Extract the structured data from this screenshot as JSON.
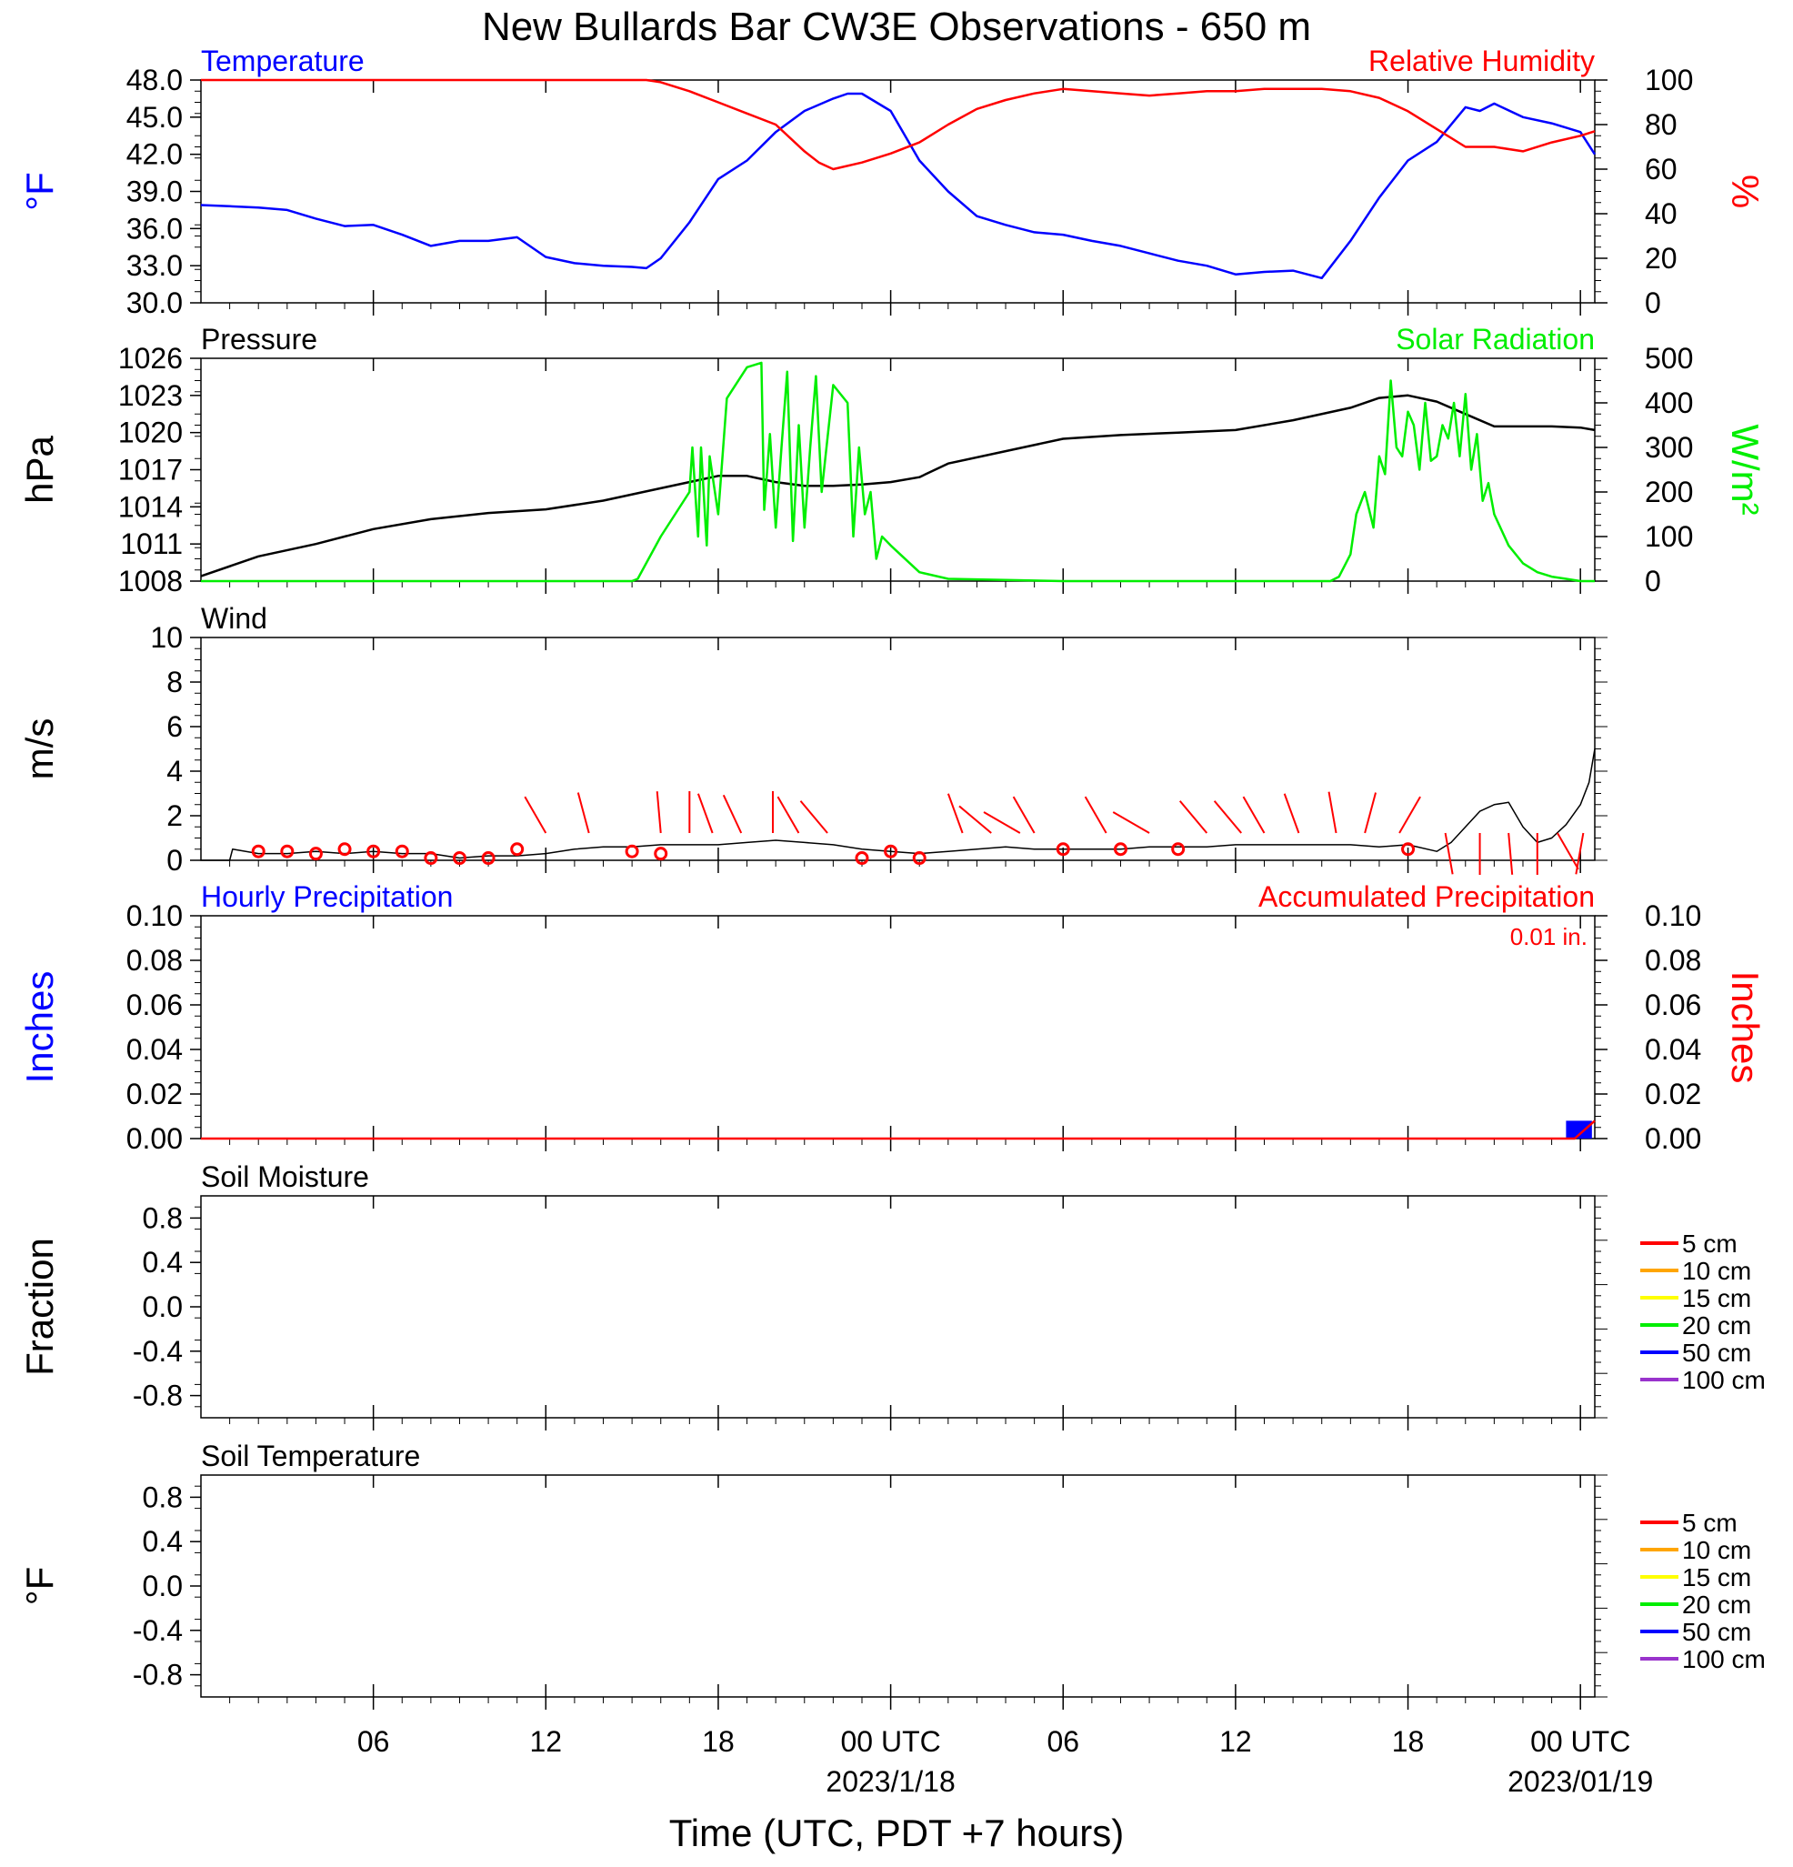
{
  "title": "New Bullards Bar CW3E Observations - 650 m",
  "xlabel": "Time (UTC, PDT +7 hours)",
  "x_axis": {
    "unit": "hours since 2023-01-17 00 UTC",
    "range": [
      0,
      48.5
    ],
    "ticks": [
      {
        "t": 6,
        "label": "06",
        "date": ""
      },
      {
        "t": 12,
        "label": "12",
        "date": ""
      },
      {
        "t": 18,
        "label": "18",
        "date": ""
      },
      {
        "t": 24,
        "label": "00 UTC",
        "date": "2023/1/18"
      },
      {
        "t": 30,
        "label": "06",
        "date": ""
      },
      {
        "t": 36,
        "label": "12",
        "date": ""
      },
      {
        "t": 42,
        "label": "18",
        "date": ""
      },
      {
        "t": 48,
        "label": "00 UTC",
        "date": "2023/01/19"
      }
    ]
  },
  "colors": {
    "blue": "#0000ff",
    "red": "#ff0000",
    "green": "#00ee00",
    "black": "#000000",
    "orange": "#ffa500",
    "yellow": "#ffff00",
    "purple": "#9933cc"
  },
  "chart_data": [
    {
      "type": "line",
      "panel": "temperature",
      "left_title": "Temperature",
      "right_title": "Relative Humidity",
      "ylabel_left": "°F",
      "ylabel_right": "%",
      "ylim_left": [
        30,
        48
      ],
      "ylim_right": [
        0,
        100
      ],
      "yticks_left": [
        "48.0",
        "45.0",
        "42.0",
        "39.0",
        "36.0",
        "33.0",
        "30.0"
      ],
      "yticks_right": [
        "100",
        "80",
        "60",
        "40",
        "20",
        "0"
      ],
      "series": [
        {
          "name": "Temperature",
          "color": "#0000ff",
          "axis": "left",
          "t": [
            0,
            1,
            2,
            3,
            4,
            5,
            6,
            7,
            8,
            9,
            10,
            11,
            12,
            13,
            14,
            15,
            15.5,
            16,
            17,
            18,
            19,
            20,
            21,
            22,
            22.5,
            23,
            24,
            25,
            26,
            27,
            28,
            29,
            30,
            31,
            32,
            33,
            34,
            35,
            36,
            37,
            38,
            39,
            40,
            41,
            42,
            43,
            44,
            44.5,
            45,
            46,
            47,
            48,
            48.5
          ],
          "values": [
            37.9,
            37.8,
            37.7,
            37.5,
            36.8,
            36.2,
            36.3,
            35.5,
            34.6,
            35.0,
            35.0,
            35.3,
            33.7,
            33.2,
            33.0,
            32.9,
            32.8,
            33.6,
            36.5,
            40.0,
            41.5,
            43.8,
            45.5,
            46.5,
            46.9,
            46.9,
            45.5,
            41.5,
            39.0,
            37.0,
            36.3,
            35.7,
            35.5,
            35.0,
            34.6,
            34.0,
            33.4,
            33.0,
            32.3,
            32.5,
            32.6,
            32.0,
            35.0,
            38.5,
            41.5,
            43.0,
            45.8,
            45.5,
            46.1,
            45.0,
            44.5,
            43.8,
            42.0
          ]
        },
        {
          "name": "Relative Humidity",
          "color": "#ff0000",
          "axis": "right",
          "t": [
            0,
            2,
            4,
            6,
            8,
            10,
            12,
            14,
            15.5,
            16,
            17,
            18,
            19,
            20,
            21,
            21.5,
            22,
            23,
            24,
            25,
            26,
            27,
            28,
            29,
            30,
            31,
            32,
            33,
            34,
            35,
            36,
            37,
            38,
            39,
            40,
            41,
            42,
            43,
            44,
            45,
            46,
            47,
            48,
            48.5
          ],
          "values": [
            100,
            100,
            100,
            100,
            100,
            100,
            100,
            100,
            100,
            99,
            95,
            90,
            85,
            80,
            68,
            63,
            60,
            63,
            67,
            72,
            80,
            87,
            91,
            94,
            96,
            95,
            94,
            93,
            94,
            95,
            95,
            96,
            96,
            96,
            95,
            92,
            86,
            78,
            70,
            70,
            68,
            72,
            75,
            77
          ]
        }
      ]
    },
    {
      "type": "line",
      "panel": "pressure",
      "left_title": "Pressure",
      "right_title": "Solar Radiation",
      "ylabel_left": "hPa",
      "ylabel_right": "W/m²",
      "ylim_left": [
        1008,
        1026
      ],
      "ylim_right": [
        0,
        500
      ],
      "yticks_left": [
        "1026",
        "1023",
        "1020",
        "1017",
        "1014",
        "1011",
        "1008"
      ],
      "yticks_right": [
        "500",
        "400",
        "300",
        "200",
        "100",
        "0"
      ],
      "series": [
        {
          "name": "Pressure",
          "color": "#000000",
          "axis": "left",
          "t": [
            0,
            2,
            4,
            6,
            8,
            10,
            12,
            14,
            16,
            18,
            19,
            20,
            21,
            22,
            23,
            24,
            25,
            26,
            28,
            30,
            32,
            34,
            36,
            38,
            40,
            41,
            42,
            43,
            44,
            45,
            46,
            47,
            48,
            48.5
          ],
          "values": [
            1008.4,
            1010.0,
            1011.0,
            1012.2,
            1013.0,
            1013.5,
            1013.8,
            1014.5,
            1015.5,
            1016.5,
            1016.5,
            1016.0,
            1015.7,
            1015.7,
            1015.8,
            1016.0,
            1016.4,
            1017.5,
            1018.5,
            1019.5,
            1019.8,
            1020.0,
            1020.2,
            1021.0,
            1022.0,
            1022.8,
            1023.0,
            1022.5,
            1021.5,
            1020.5,
            1020.5,
            1020.5,
            1020.4,
            1020.2
          ]
        },
        {
          "name": "Solar Radiation",
          "color": "#00ee00",
          "axis": "right",
          "t": [
            0,
            14,
            15,
            15.2,
            16,
            17,
            17.1,
            17.3,
            17.4,
            17.6,
            17.7,
            18,
            18.3,
            19,
            19.5,
            19.6,
            19.8,
            20,
            20.2,
            20.4,
            20.6,
            20.8,
            21,
            21.2,
            21.4,
            21.6,
            22,
            22.5,
            22.7,
            22.9,
            23.1,
            23.3,
            23.5,
            23.7,
            24,
            25,
            26,
            30,
            36,
            39,
            39.3,
            39.6,
            40,
            40.2,
            40.5,
            40.8,
            41,
            41.2,
            41.4,
            41.6,
            41.8,
            42,
            42.2,
            42.4,
            42.6,
            42.8,
            43,
            43.2,
            43.4,
            43.6,
            43.8,
            44,
            44.2,
            44.4,
            44.6,
            44.8,
            45,
            45.5,
            46,
            46.5,
            47,
            47.5,
            48,
            48.5
          ],
          "values": [
            0,
            0,
            0,
            5,
            100,
            200,
            300,
            100,
            300,
            80,
            280,
            150,
            410,
            480,
            490,
            160,
            330,
            120,
            300,
            470,
            90,
            350,
            120,
            300,
            460,
            200,
            440,
            400,
            100,
            300,
            150,
            200,
            50,
            100,
            80,
            20,
            5,
            0,
            0,
            0,
            0,
            10,
            60,
            150,
            200,
            120,
            280,
            240,
            450,
            300,
            280,
            380,
            350,
            250,
            400,
            270,
            280,
            350,
            320,
            400,
            280,
            420,
            250,
            330,
            180,
            220,
            150,
            80,
            40,
            20,
            10,
            5,
            0,
            0
          ]
        }
      ]
    },
    {
      "type": "line",
      "panel": "wind",
      "left_title": "Wind",
      "ylabel_left": "m/s",
      "ylim_left": [
        0,
        10
      ],
      "yticks_left": [
        "10",
        "8",
        "6",
        "4",
        "2",
        "0"
      ],
      "series": [
        {
          "name": "Wind",
          "color": "#000000",
          "axis": "left",
          "t": [
            0,
            1,
            1.1,
            2,
            3,
            4,
            5,
            6,
            7,
            8,
            9,
            10,
            11,
            12,
            13,
            14,
            15,
            16,
            17,
            18,
            19,
            20,
            21,
            22,
            23,
            24,
            25,
            26,
            27,
            28,
            29,
            30,
            31,
            32,
            33,
            34,
            35,
            36,
            37,
            38,
            39,
            40,
            41,
            42,
            43,
            43.5,
            44,
            44.5,
            45,
            45.5,
            46,
            46.5,
            47,
            47.5,
            48,
            48.3,
            48.5
          ],
          "values": [
            0,
            0,
            0.5,
            0.3,
            0.3,
            0.4,
            0.3,
            0.4,
            0.3,
            0.3,
            0.1,
            0.2,
            0.2,
            0.3,
            0.5,
            0.6,
            0.6,
            0.7,
            0.7,
            0.7,
            0.8,
            0.9,
            0.8,
            0.7,
            0.5,
            0.4,
            0.3,
            0.4,
            0.5,
            0.6,
            0.5,
            0.5,
            0.5,
            0.5,
            0.6,
            0.6,
            0.6,
            0.7,
            0.7,
            0.7,
            0.7,
            0.7,
            0.6,
            0.7,
            0.4,
            0.8,
            1.5,
            2.2,
            2.5,
            2.6,
            1.5,
            0.8,
            1.0,
            1.6,
            2.5,
            3.5,
            5.0
          ]
        }
      ],
      "calm_markers_t": [
        2,
        3,
        4,
        5,
        6,
        7,
        8,
        9,
        10,
        11,
        15,
        16,
        23,
        24,
        25,
        30,
        32,
        34,
        42
      ],
      "calm_markers_v": [
        0.4,
        0.4,
        0.3,
        0.5,
        0.4,
        0.4,
        0.1,
        0.1,
        0.1,
        0.5,
        0.4,
        0.3,
        0.1,
        0.4,
        0.1,
        0.5,
        0.5,
        0.5,
        0.5
      ],
      "barbs": [
        {
          "t": 12,
          "dir": 330
        },
        {
          "t": 13.5,
          "dir": 345
        },
        {
          "t": 16,
          "dir": 355
        },
        {
          "t": 17,
          "dir": 360
        },
        {
          "t": 17.8,
          "dir": 340
        },
        {
          "t": 18.8,
          "dir": 335
        },
        {
          "t": 19.9,
          "dir": 360
        },
        {
          "t": 20.8,
          "dir": 330
        },
        {
          "t": 21.8,
          "dir": 320
        },
        {
          "t": 26.5,
          "dir": 340
        },
        {
          "t": 27.5,
          "dir": 310
        },
        {
          "t": 28.5,
          "dir": 300
        },
        {
          "t": 29,
          "dir": 330
        },
        {
          "t": 31.5,
          "dir": 330
        },
        {
          "t": 33,
          "dir": 300
        },
        {
          "t": 35,
          "dir": 320
        },
        {
          "t": 36.2,
          "dir": 320
        },
        {
          "t": 37,
          "dir": 330
        },
        {
          "t": 38.2,
          "dir": 340
        },
        {
          "t": 39.5,
          "dir": 350
        },
        {
          "t": 40.5,
          "dir": 15
        },
        {
          "t": 41.7,
          "dir": 30
        },
        {
          "t": 43.3,
          "dir": 170
        },
        {
          "t": 44.5,
          "dir": 180
        },
        {
          "t": 45.5,
          "dir": 175
        },
        {
          "t": 46.5,
          "dir": 180
        },
        {
          "t": 47.2,
          "dir": 150
        },
        {
          "t": 48.1,
          "dir": 190
        }
      ]
    },
    {
      "type": "bar",
      "panel": "precipitation",
      "left_title": "Hourly Precipitation",
      "right_title": "Accumulated Precipitation",
      "right_note": "0.01 in.",
      "ylabel_left": "Inches",
      "ylabel_right": "Inches",
      "ylim_left": [
        0,
        0.1
      ],
      "ylim_right": [
        0,
        0.1
      ],
      "yticks_left": [
        "0.10",
        "0.08",
        "0.06",
        "0.04",
        "0.02",
        "0.00"
      ],
      "yticks_right": [
        "0.10",
        "0.08",
        "0.06",
        "0.04",
        "0.02",
        "0.00"
      ],
      "series": [
        {
          "name": "Hourly Precipitation",
          "color": "#0000ff",
          "axis": "left",
          "bars": [
            {
              "t0": 47.5,
              "t1": 48.4,
              "value": 0.008
            }
          ]
        },
        {
          "name": "Accumulated Precipitation",
          "color": "#ff0000",
          "axis": "right",
          "t": [
            0,
            47.8,
            48.5
          ],
          "values": [
            0,
            0,
            0.008
          ]
        }
      ]
    },
    {
      "type": "line",
      "panel": "soil_moisture",
      "left_title": "Soil Moisture",
      "ylabel_left": "Fraction",
      "ylim_left": [
        -1,
        1
      ],
      "yticks_left": [
        "0.8",
        "0.4",
        "0.0",
        "-0.4",
        "-0.8"
      ],
      "legend": [
        {
          "label": "5 cm",
          "color": "#ff0000"
        },
        {
          "label": "10 cm",
          "color": "#ffa500"
        },
        {
          "label": "15 cm",
          "color": "#ffff00"
        },
        {
          "label": "20 cm",
          "color": "#00ee00"
        },
        {
          "label": "50 cm",
          "color": "#0000ff"
        },
        {
          "label": "100 cm",
          "color": "#9933cc"
        }
      ]
    },
    {
      "type": "line",
      "panel": "soil_temperature",
      "left_title": "Soil Temperature",
      "ylabel_left": "°F",
      "ylim_left": [
        -1,
        1
      ],
      "yticks_left": [
        "0.8",
        "0.4",
        "0.0",
        "-0.4",
        "-0.8"
      ],
      "legend": [
        {
          "label": "5 cm",
          "color": "#ff0000"
        },
        {
          "label": "10 cm",
          "color": "#ffa500"
        },
        {
          "label": "15 cm",
          "color": "#ffff00"
        },
        {
          "label": "20 cm",
          "color": "#00ee00"
        },
        {
          "label": "50 cm",
          "color": "#0000ff"
        },
        {
          "label": "100 cm",
          "color": "#9933cc"
        }
      ]
    }
  ]
}
